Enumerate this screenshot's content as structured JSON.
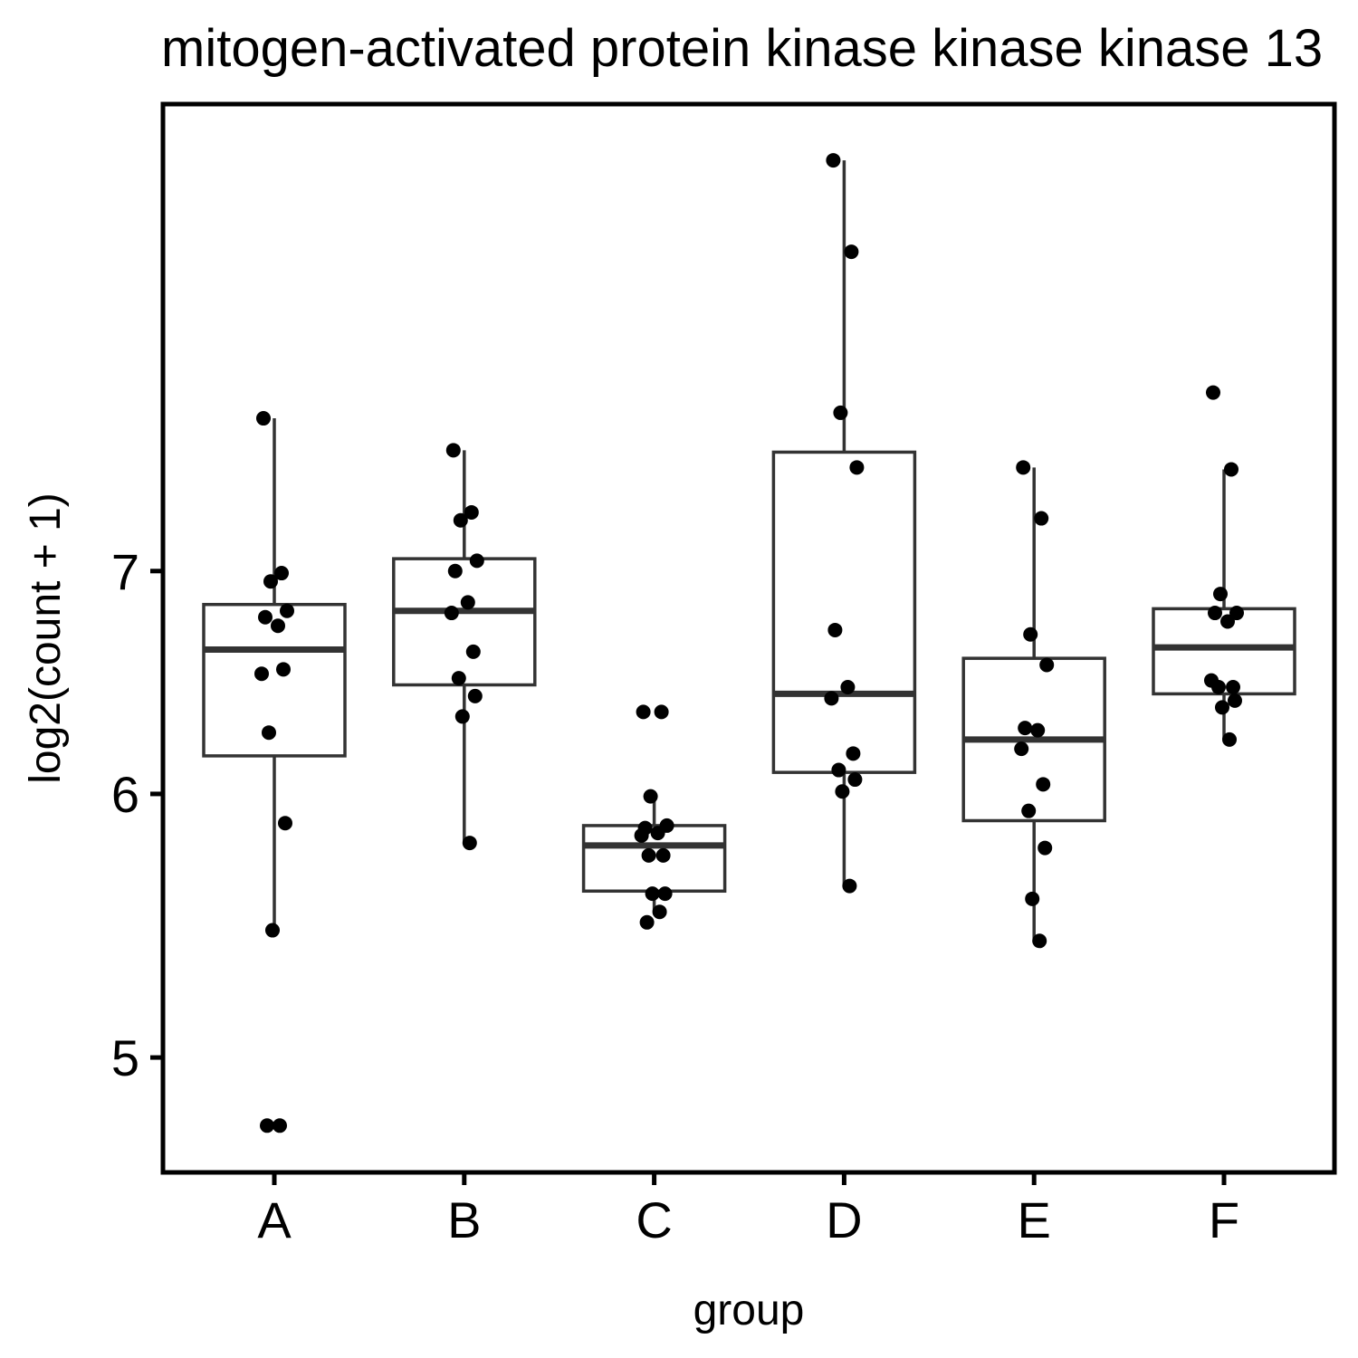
{
  "chart_data": {
    "type": "boxplot",
    "title": "mitogen-activated protein kinase kinase kinase 13",
    "xlabel": "group",
    "ylabel": "log2(count + 1)",
    "y_scale": "log",
    "yticks": [
      5,
      6,
      7
    ],
    "ylim": [
      4.75,
      9.4
    ],
    "grid": false,
    "legend": "none",
    "colors": {
      "box": "#333333",
      "point": "#000000",
      "frame": "#000000"
    },
    "categories": [
      "A",
      "B",
      "C",
      "D",
      "E",
      "F"
    ],
    "boxes": [
      {
        "group": "A",
        "whisker_low": 5.47,
        "q1": 6.16,
        "median": 6.63,
        "q3": 6.84,
        "whisker_high": 7.78
      },
      {
        "group": "B",
        "whisker_low": 5.8,
        "q1": 6.47,
        "median": 6.81,
        "q3": 7.06,
        "whisker_high": 7.61
      },
      {
        "group": "C",
        "whisker_low": 5.53,
        "q1": 5.61,
        "median": 5.79,
        "q3": 5.87,
        "whisker_high": 5.99
      },
      {
        "group": "D",
        "whisker_low": 5.63,
        "q1": 6.09,
        "median": 6.43,
        "q3": 7.6,
        "whisker_high": 9.3
      },
      {
        "group": "E",
        "whisker_low": 5.42,
        "q1": 5.89,
        "median": 6.23,
        "q3": 6.59,
        "whisker_high": 7.52
      },
      {
        "group": "F",
        "whisker_low": 6.23,
        "q1": 6.43,
        "median": 6.64,
        "q3": 6.82,
        "whisker_high": 7.51
      }
    ],
    "points": [
      {
        "group": "A",
        "values": [
          7.78,
          6.99,
          6.95,
          6.81,
          6.78,
          6.74,
          6.52,
          6.54,
          6.26,
          5.88,
          5.46,
          4.77,
          4.77
        ]
      },
      {
        "group": "B",
        "values": [
          7.61,
          7.29,
          7.25,
          7.05,
          7.0,
          6.85,
          6.8,
          6.62,
          6.5,
          6.42,
          6.33,
          5.8
        ]
      },
      {
        "group": "C",
        "values": [
          6.35,
          6.35,
          5.99,
          5.87,
          5.86,
          5.84,
          5.83,
          5.75,
          5.75,
          5.6,
          5.6,
          5.53,
          5.49
        ]
      },
      {
        "group": "D",
        "values": [
          9.3,
          8.73,
          7.81,
          7.52,
          6.72,
          6.46,
          6.41,
          6.17,
          6.1,
          6.06,
          6.01,
          5.63
        ]
      },
      {
        "group": "E",
        "values": [
          7.52,
          7.26,
          6.7,
          6.56,
          6.28,
          6.27,
          6.19,
          6.04,
          5.93,
          5.78,
          5.58,
          5.42
        ]
      },
      {
        "group": "F",
        "values": [
          7.92,
          7.51,
          6.89,
          6.8,
          6.8,
          6.76,
          6.49,
          6.46,
          6.46,
          6.4,
          6.37,
          6.23
        ]
      }
    ]
  }
}
